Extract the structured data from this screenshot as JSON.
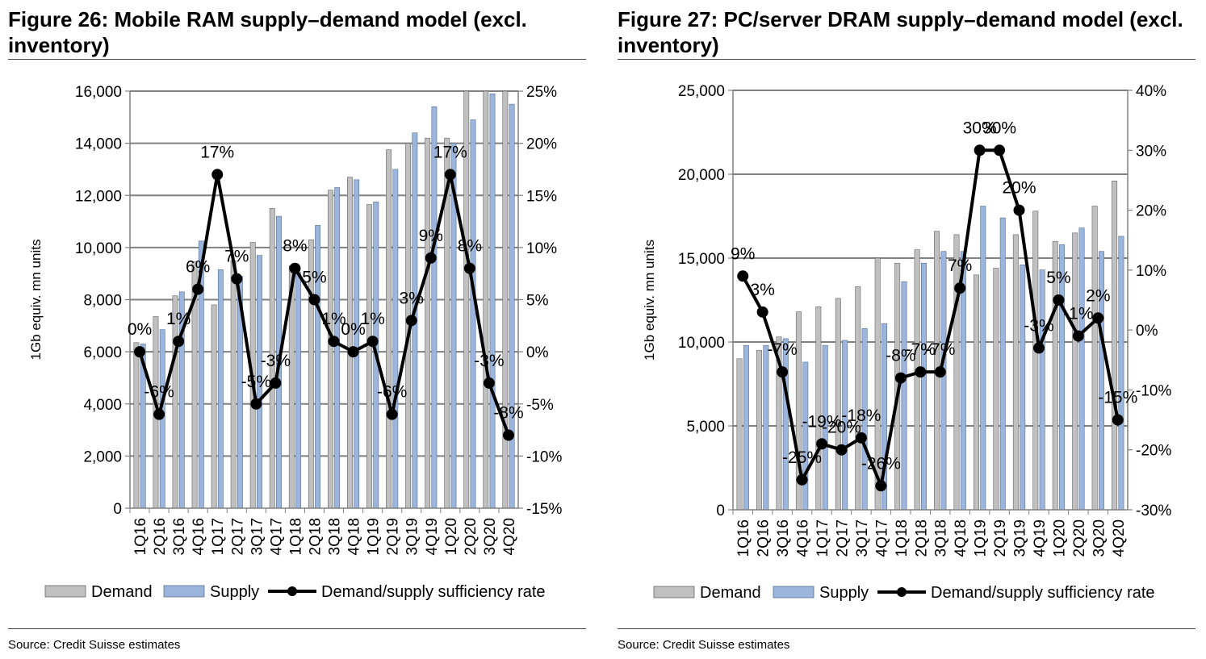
{
  "charts": [
    {
      "title": "Figure 26: Mobile RAM supply–demand model (excl. inventory)",
      "source": "Source: Credit Suisse estimates"
    },
    {
      "title": "Figure 27: PC/server DRAM supply–demand model (excl. inventory)",
      "source": "Source: Credit Suisse estimates"
    }
  ],
  "colors": {
    "demand": "#c0c0c0",
    "supply": "#9bb5dc",
    "line": "#000000",
    "grid": "#808080"
  },
  "chart_data": [
    {
      "type": "bar",
      "title": "Figure 26: Mobile RAM supply–demand model (excl. inventory)",
      "ylabel": "1Gb equiv. mn units",
      "y2label": "",
      "categories": [
        "1Q16",
        "2Q16",
        "3Q16",
        "4Q16",
        "1Q17",
        "2Q17",
        "3Q17",
        "4Q17",
        "1Q18",
        "2Q18",
        "3Q18",
        "4Q18",
        "1Q19",
        "2Q19",
        "3Q19",
        "4Q19",
        "1Q20",
        "2Q20",
        "3Q20",
        "4Q20"
      ],
      "ylim": [
        0,
        16000
      ],
      "yticks": [
        0,
        2000,
        4000,
        6000,
        8000,
        10000,
        12000,
        14000,
        16000
      ],
      "ytick_labels": [
        "0",
        "2,000",
        "4,000",
        "6,000",
        "8,000",
        "10,000",
        "12,000",
        "14,000",
        "16,000"
      ],
      "y2lim": [
        -15,
        25
      ],
      "y2ticks": [
        -15,
        -10,
        -5,
        0,
        5,
        10,
        15,
        20,
        25
      ],
      "y2tick_labels": [
        "-15%",
        "-10%",
        "-5%",
        "0%",
        "5%",
        "10%",
        "15%",
        "20%",
        "25%"
      ],
      "grid": true,
      "legend": "bottom",
      "series": [
        {
          "name": "Demand",
          "type": "bar",
          "axis": "left",
          "values": [
            6350,
            7350,
            8150,
            9450,
            7800,
            9500,
            10200,
            11500,
            9300,
            10300,
            12200,
            12700,
            11650,
            13750,
            14000,
            14200,
            14200,
            16000,
            16000,
            16000
          ]
        },
        {
          "name": "Supply",
          "type": "bar",
          "axis": "left",
          "values": [
            6300,
            6850,
            8300,
            10250,
            9150,
            8900,
            9700,
            11200,
            9050,
            10850,
            12300,
            12600,
            11750,
            13000,
            14400,
            15400,
            14000,
            14900,
            15900,
            15500
          ]
        },
        {
          "name": "Demand/supply sufficiency rate",
          "type": "line",
          "axis": "right",
          "values": [
            0,
            -6,
            1,
            6,
            17,
            7,
            -5,
            -3,
            8,
            5,
            1,
            0,
            1,
            -6,
            3,
            9,
            17,
            8,
            -3,
            -8
          ],
          "labels": [
            "0%",
            "-6%",
            "1%",
            "6%",
            "17%",
            "7%",
            "-5%",
            "-3%",
            "8%",
            "5%",
            "1%",
            "0%",
            "1%",
            "-6%",
            "3%",
            "9%",
            "17%",
            "8%",
            "-3%",
            "-8%"
          ]
        }
      ]
    },
    {
      "type": "bar",
      "title": "Figure 27: PC/server DRAM supply–demand model (excl. inventory)",
      "ylabel": "1Gb equiv. mn units",
      "y2label": "",
      "categories": [
        "1Q16",
        "2Q16",
        "3Q16",
        "4Q16",
        "1Q17",
        "2Q17",
        "3Q17",
        "4Q17",
        "1Q18",
        "2Q18",
        "3Q18",
        "4Q18",
        "1Q19",
        "2Q19",
        "3Q19",
        "4Q19",
        "1Q20",
        "2Q20",
        "3Q20",
        "4Q20"
      ],
      "ylim": [
        0,
        25000
      ],
      "yticks": [
        0,
        5000,
        10000,
        15000,
        20000,
        25000
      ],
      "ytick_labels": [
        "0",
        "5,000",
        "10,000",
        "15,000",
        "20,000",
        "25,000"
      ],
      "y2lim": [
        -30,
        40
      ],
      "y2ticks": [
        -30,
        -20,
        -10,
        0,
        10,
        20,
        30,
        40
      ],
      "y2tick_labels": [
        "-30%",
        "-20%",
        "-10%",
        "0%",
        "10%",
        "20%",
        "30%",
        "40%"
      ],
      "grid": true,
      "legend": "bottom",
      "series": [
        {
          "name": "Demand",
          "type": "bar",
          "axis": "left",
          "values": [
            9000,
            9500,
            10300,
            11800,
            12100,
            12600,
            13300,
            15000,
            14700,
            15500,
            16600,
            16400,
            14000,
            14400,
            16400,
            17800,
            16000,
            16500,
            18100,
            19600
          ]
        },
        {
          "name": "Supply",
          "type": "bar",
          "axis": "left",
          "values": [
            9800,
            9800,
            10200,
            8800,
            9800,
            10100,
            10800,
            11100,
            13600,
            14700,
            15400,
            15400,
            18100,
            17400,
            14600,
            14300,
            15800,
            16800,
            15400,
            16300
          ]
        },
        {
          "name": "Demand/supply sufficiency rate",
          "type": "line",
          "axis": "right",
          "values": [
            9,
            3,
            -7,
            -25,
            -19,
            -20,
            -18,
            -26,
            -8,
            -7,
            -7,
            7,
            30,
            30,
            20,
            -3,
            5,
            -1,
            2,
            -15
          ],
          "labels": [
            "9%",
            "3%",
            "-7%",
            "-25%",
            "-19%",
            "-20%",
            "-18%",
            "-26%",
            "-8%",
            "-7%",
            "-7%",
            "7%",
            "30%",
            "30%",
            "20%",
            "-3%",
            "5%",
            "-1%",
            "2%",
            "-15%"
          ]
        }
      ]
    }
  ]
}
